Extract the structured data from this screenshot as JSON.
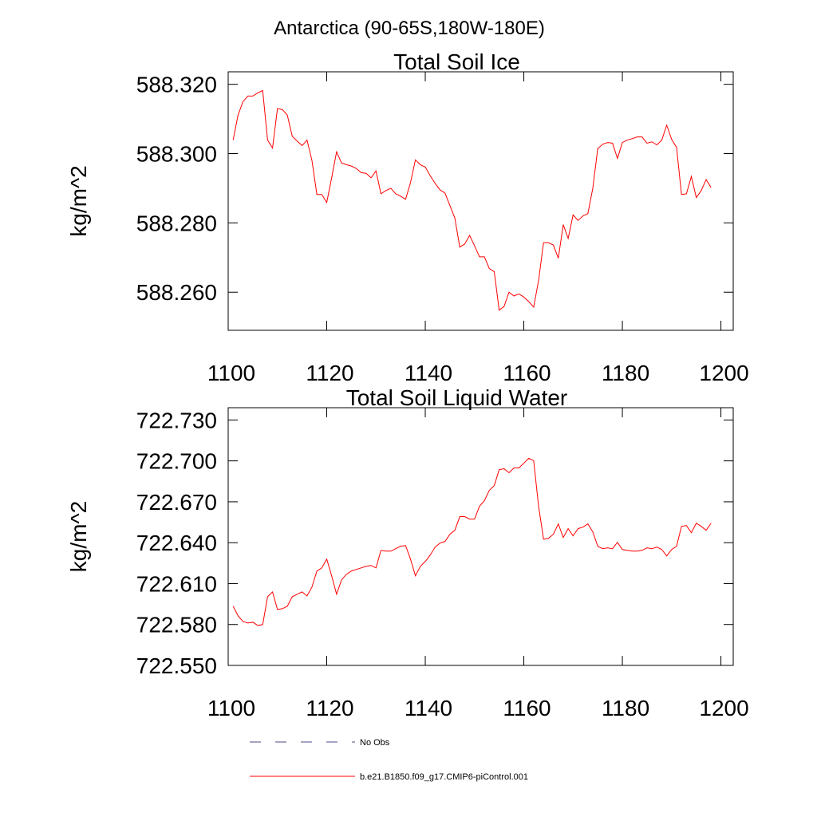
{
  "title": "Antarctica (90-65S,180W-180E)",
  "chart_data": [
    {
      "type": "line",
      "title": "Total Soil Ice",
      "ylabel": "kg/m^2",
      "x": [
        1101,
        1102,
        1103,
        1104,
        1105,
        1106,
        1107,
        1108,
        1109,
        1110,
        1111,
        1112,
        1113,
        1114,
        1115,
        1116,
        1117,
        1118,
        1119,
        1120,
        1121,
        1122,
        1123,
        1124,
        1125,
        1126,
        1127,
        1128,
        1129,
        1130,
        1131,
        1132,
        1133,
        1134,
        1135,
        1136,
        1137,
        1138,
        1139,
        1140,
        1141,
        1142,
        1143,
        1144,
        1145,
        1146,
        1147,
        1148,
        1149,
        1150,
        1151,
        1152,
        1153,
        1154,
        1155,
        1156,
        1157,
        1158,
        1159,
        1160,
        1161,
        1162,
        1163,
        1164,
        1165,
        1166,
        1167,
        1168,
        1169,
        1170,
        1171,
        1172,
        1173,
        1174,
        1175,
        1176,
        1177,
        1178,
        1179,
        1180,
        1181,
        1182,
        1183,
        1184,
        1185,
        1186,
        1187,
        1188,
        1189,
        1190,
        1191,
        1192,
        1193,
        1194,
        1195,
        1196,
        1197,
        1198
      ],
      "series": [
        {
          "color": "#ff0000",
          "values": [
            588.3039,
            588.3111,
            588.315,
            588.3166,
            588.3166,
            588.3175,
            588.3182,
            588.3039,
            588.3016,
            588.313,
            588.3127,
            588.3111,
            588.305,
            588.3036,
            588.3023,
            588.3039,
            588.298,
            588.2882,
            588.2882,
            588.2859,
            588.293,
            588.3005,
            588.2973,
            588.2968,
            588.2964,
            588.2957,
            588.2945,
            588.2943,
            588.293,
            588.295,
            588.2884,
            588.2893,
            588.29,
            588.2884,
            588.2877,
            588.2868,
            588.2916,
            588.2982,
            588.2968,
            588.2961,
            588.2936,
            588.2914,
            588.2895,
            588.2886,
            588.285,
            588.2814,
            588.273,
            588.2739,
            588.2764,
            588.2734,
            588.2702,
            588.2702,
            588.2668,
            588.2659,
            588.2548,
            588.2559,
            588.26,
            588.2589,
            588.2595,
            588.2586,
            588.2573,
            588.2557,
            588.2634,
            588.2743,
            588.2743,
            588.2736,
            588.2698,
            588.2795,
            588.2755,
            588.2823,
            588.2807,
            588.282,
            588.2827,
            588.29,
            588.3014,
            588.3027,
            588.3032,
            588.303,
            588.2986,
            588.3032,
            588.3039,
            588.3043,
            588.3048,
            588.3048,
            588.303,
            588.3034,
            588.3025,
            588.3039,
            588.3082,
            588.3041,
            588.3018,
            588.2882,
            588.2884,
            588.2934,
            588.2873,
            588.2893,
            588.2925,
            588.2902
          ]
        }
      ],
      "xlim": [
        1100,
        1202.5
      ],
      "ylim": [
        588.249,
        588.3236
      ],
      "xticks": [
        1100,
        1120,
        1140,
        1160,
        1180,
        1200
      ],
      "yticks": [
        {
          "value": 588.26,
          "label": "588.260"
        },
        {
          "value": 588.28,
          "label": "588.280"
        },
        {
          "value": 588.3,
          "label": "588.300"
        },
        {
          "value": 588.32,
          "label": "588.320"
        }
      ]
    },
    {
      "type": "line",
      "title": "Total Soil Liquid Water",
      "ylabel": "kg/m^2",
      "x": [
        1101,
        1102,
        1103,
        1104,
        1105,
        1106,
        1107,
        1108,
        1109,
        1110,
        1111,
        1112,
        1113,
        1114,
        1115,
        1116,
        1117,
        1118,
        1119,
        1120,
        1121,
        1122,
        1123,
        1124,
        1125,
        1126,
        1127,
        1128,
        1129,
        1130,
        1131,
        1132,
        1133,
        1134,
        1135,
        1136,
        1137,
        1138,
        1139,
        1140,
        1141,
        1142,
        1143,
        1144,
        1145,
        1146,
        1147,
        1148,
        1149,
        1150,
        1151,
        1152,
        1153,
        1154,
        1155,
        1156,
        1157,
        1158,
        1159,
        1160,
        1161,
        1162,
        1163,
        1164,
        1165,
        1166,
        1167,
        1168,
        1169,
        1170,
        1171,
        1172,
        1173,
        1174,
        1175,
        1176,
        1177,
        1178,
        1179,
        1180,
        1181,
        1182,
        1183,
        1184,
        1185,
        1186,
        1187,
        1188,
        1189,
        1190,
        1191,
        1192,
        1193,
        1194,
        1195,
        1196,
        1197,
        1198
      ],
      "series": [
        {
          "color": "#ff0000",
          "values": [
            722.5934,
            722.5864,
            722.5822,
            722.5811,
            722.5817,
            722.5793,
            722.5799,
            722.6004,
            722.6039,
            722.591,
            722.5916,
            722.5934,
            722.6004,
            722.6022,
            722.6039,
            722.601,
            722.6075,
            722.6192,
            722.6215,
            722.628,
            722.6157,
            722.6022,
            722.6127,
            722.6168,
            722.6192,
            722.6204,
            722.6215,
            722.6227,
            722.6233,
            722.6215,
            722.6344,
            722.6338,
            722.6338,
            722.6356,
            722.6374,
            722.6379,
            722.628,
            722.6157,
            722.6227,
            722.6262,
            722.6309,
            722.6368,
            722.6397,
            722.6409,
            722.6462,
            722.6491,
            722.6591,
            722.6591,
            722.6573,
            722.6573,
            722.6667,
            722.6708,
            722.6784,
            722.6819,
            722.6936,
            722.6942,
            722.6913,
            722.6948,
            722.6948,
            722.6983,
            722.7019,
            722.7001,
            722.6667,
            722.6426,
            722.6432,
            722.6462,
            722.6538,
            722.6438,
            722.6503,
            722.645,
            722.6503,
            722.6514,
            722.6538,
            722.6479,
            722.6374,
            722.6356,
            722.6362,
            722.6356,
            722.6403,
            722.635,
            722.6344,
            722.6338,
            722.6338,
            722.6344,
            722.6362,
            722.6356,
            722.6368,
            722.635,
            722.6303,
            722.635,
            722.6374,
            722.652,
            722.6526,
            722.6473,
            722.6543,
            722.652,
            722.6491,
            722.6543
          ]
        }
      ],
      "xlim": [
        1100,
        1202.5
      ],
      "ylim": [
        722.55,
        722.739
      ],
      "xticks": [
        1100,
        1120,
        1140,
        1160,
        1180,
        1200
      ],
      "yticks": [
        {
          "value": 722.55,
          "label": "722.550"
        },
        {
          "value": 722.58,
          "label": "722.580"
        },
        {
          "value": 722.61,
          "label": "722.610"
        },
        {
          "value": 722.64,
          "label": "722.640"
        },
        {
          "value": 722.67,
          "label": "722.670"
        },
        {
          "value": 722.7,
          "label": "722.700"
        },
        {
          "value": 722.73,
          "label": "722.730"
        }
      ]
    }
  ],
  "legend": [
    {
      "label": "No Obs",
      "color": "#4a4a8a",
      "dash": true
    },
    {
      "label": "b.e21.B1850.f09_g17.CMIP6-piControl.001",
      "color": "#ff0000",
      "dash": false
    }
  ]
}
